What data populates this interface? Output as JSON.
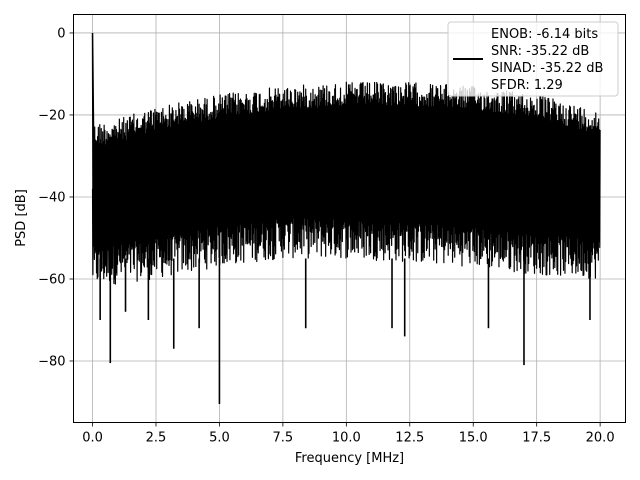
{
  "chart_data": {
    "type": "line",
    "title": "",
    "xlabel": "Frequency [MHz]",
    "ylabel": "PSD [dB]",
    "xlim": [
      -0.75,
      21.0
    ],
    "ylim": [
      -95,
      4.5
    ],
    "xticks": [
      0.0,
      2.5,
      5.0,
      7.5,
      10.0,
      12.5,
      15.0,
      17.5,
      20.0
    ],
    "xtick_labels": [
      "0.0",
      "2.5",
      "5.0",
      "7.5",
      "10.0",
      "12.5",
      "15.0",
      "17.5",
      "20.0"
    ],
    "yticks": [
      0,
      -20,
      -40,
      -60,
      -80
    ],
    "ytick_labels": [
      "0",
      "−20",
      "−40",
      "−60",
      "−80"
    ],
    "grid": true,
    "legend_position": "top-right",
    "series": [
      {
        "color": "#000000",
        "legend_lines": [
          "ENOB: -6.14 bits",
          "SNR: -35.22 dB",
          "SINAD: -35.22 dB",
          "SFDR: 1.29"
        ],
        "x_range": [
          0.0,
          20.0
        ],
        "features": {
          "peak": {
            "x": 0.0,
            "y": 0
          },
          "floor_envelope": [
            [
              0.0,
              -22
            ],
            [
              1.0,
              -21
            ],
            [
              2.5,
              -18
            ],
            [
              5.0,
              -15
            ],
            [
              7.5,
              -13
            ],
            [
              10.0,
              -12
            ],
            [
              12.5,
              -12
            ],
            [
              15.0,
              -13
            ],
            [
              17.5,
              -15
            ],
            [
              20.0,
              -19
            ]
          ],
          "bottom_envelope": [
            [
              0.0,
              -62
            ],
            [
              2.5,
              -60
            ],
            [
              5.0,
              -57
            ],
            [
              7.5,
              -55
            ],
            [
              10.0,
              -55
            ],
            [
              12.5,
              -56
            ],
            [
              15.0,
              -57
            ],
            [
              17.5,
              -59
            ],
            [
              20.0,
              -60
            ]
          ],
          "dips": [
            [
              0.3,
              -70
            ],
            [
              0.7,
              -80.5
            ],
            [
              1.3,
              -68
            ],
            [
              2.2,
              -70
            ],
            [
              3.2,
              -77
            ],
            [
              4.2,
              -72
            ],
            [
              5.0,
              -90.5
            ],
            [
              8.4,
              -72
            ],
            [
              11.8,
              -72
            ],
            [
              12.3,
              -74
            ],
            [
              15.6,
              -72
            ],
            [
              17.0,
              -81
            ],
            [
              19.6,
              -70
            ]
          ]
        }
      }
    ]
  }
}
